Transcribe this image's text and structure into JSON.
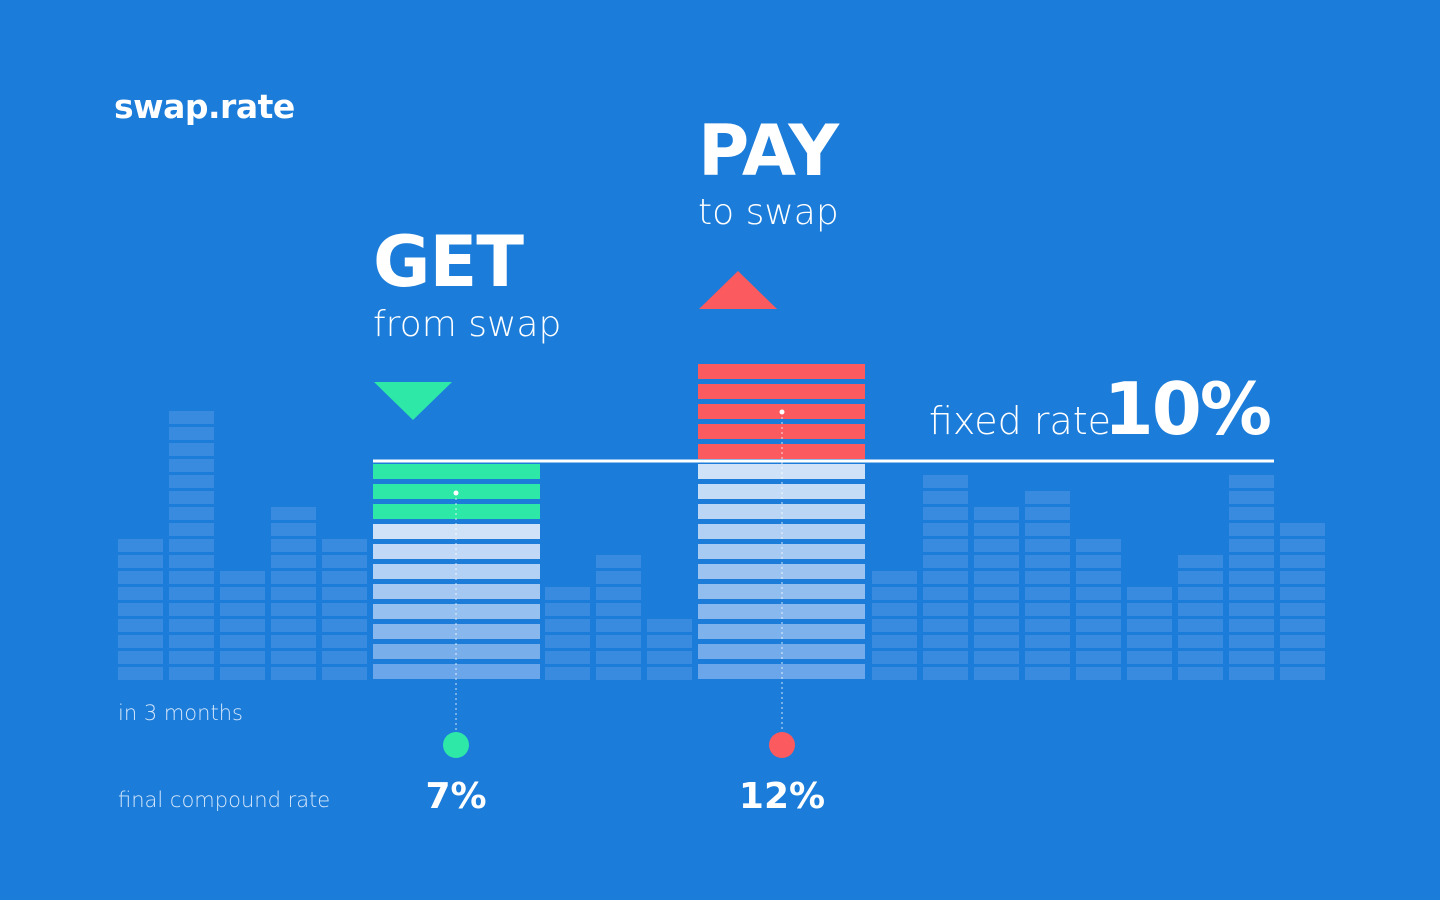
{
  "brand": {
    "logo": "swap.rate"
  },
  "get": {
    "title": "GET",
    "subtitle": "from swap",
    "value": "7%",
    "color": "#2ee8a8",
    "blocks_above": 3
  },
  "pay": {
    "title": "PAY",
    "subtitle": "to swap",
    "value": "12%",
    "color": "#fb5a5e",
    "blocks_above": 5
  },
  "fixed": {
    "label": "fixed rate",
    "value": "10%"
  },
  "labels": {
    "period": "in 3 months",
    "compound": "final compound rate"
  },
  "colors": {
    "background": "#1b7cd9",
    "background_bar": "#3e8ee0",
    "main_bar_light": "#cfe2f8",
    "main_bar_dark": "#6aa6e9"
  }
}
